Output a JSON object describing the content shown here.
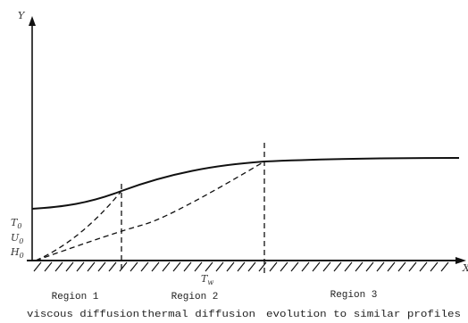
{
  "axes": {
    "y_label": "Y",
    "x_label": "X"
  },
  "left_labels": {
    "t0": "T",
    "t0_sub": "0",
    "u0": "U",
    "u0_sub": "0",
    "h0": "H",
    "h0_sub": "0"
  },
  "wall_label": {
    "main": "T",
    "sub": "w"
  },
  "regions": [
    {
      "label": "Region 1",
      "description": "viscous diffusion"
    },
    {
      "label": "Region 2",
      "description": "thermal diffusion"
    },
    {
      "label": "Region 3",
      "description": "evolution to similar profiles"
    }
  ],
  "colors": {
    "line": "#111111",
    "text": "#222222"
  }
}
